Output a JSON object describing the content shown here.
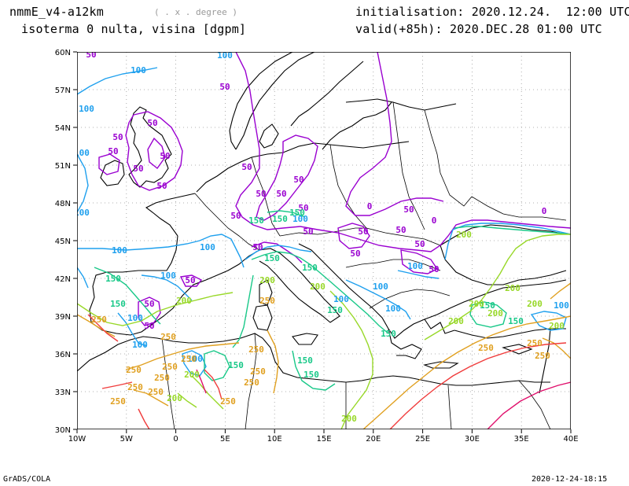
{
  "header": {
    "model": "nmmE_v4-a12km",
    "units_hint": "( . x . degree )",
    "product": "isoterma 0 nulta, visina [dgpm]",
    "init": "initialisation: 2020.12.24.  12:00 UTC",
    "valid": "valid(+85h): 2020.DEC.28 01:00 UTC"
  },
  "footer": {
    "left": "GrADS/COLA",
    "right": "2020-12-24-18:15"
  },
  "axes": {
    "lon_labels": [
      "10W",
      "5W",
      "0",
      "5E",
      "10E",
      "15E",
      "20E",
      "25E",
      "30E",
      "35E",
      "40E"
    ],
    "lat_labels": [
      "30N",
      "33N",
      "36N",
      "39N",
      "42N",
      "45N",
      "48N",
      "51N",
      "54N",
      "57N",
      "60N"
    ]
  },
  "contour_labels": {
    "l50": "50",
    "l100": "100",
    "l150": "150",
    "l200": "200",
    "l250": "250",
    "l0": "0"
  },
  "colors": {
    "c0": "#9a00d0",
    "c50": "#9a00d0",
    "c100": "#1fa0ee",
    "c150": "#18c888",
    "c200": "#98d828",
    "c250": "#e0a020",
    "c300": "#f03c3c",
    "c350": "#e0106c",
    "coast": "#000000",
    "grid": "#888888"
  }
}
